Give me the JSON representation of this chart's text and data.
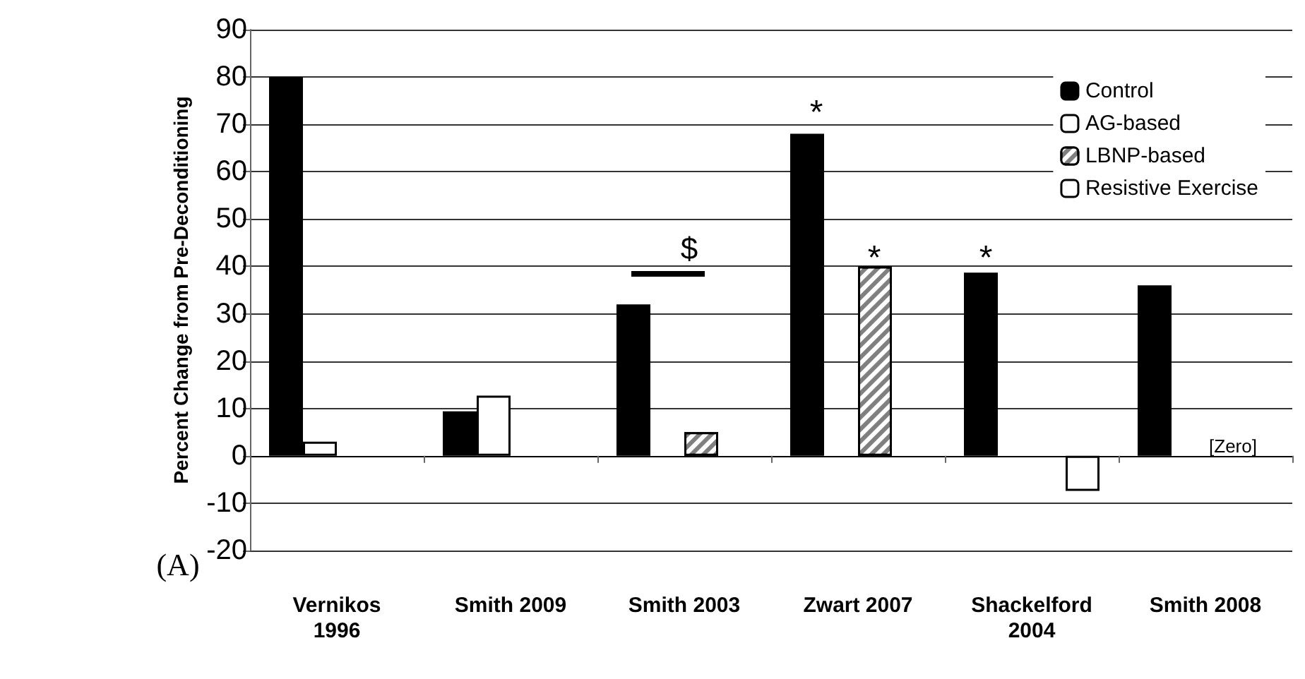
{
  "chart_data": {
    "type": "bar",
    "ylabel": "Percent Change from Pre-Deconditioning",
    "categories": [
      "Vernikos\n1996",
      "Smith 2009",
      "Smith 2003",
      "Zwart 2007",
      "Shackelford\n2004",
      "Smith 2008"
    ],
    "series": [
      {
        "name": "Control",
        "color": "#000000",
        "values": [
          80,
          9.4,
          32,
          68,
          38.7,
          36
        ]
      },
      {
        "name": "AG-based",
        "color": "#ffffff",
        "values": [
          3,
          12.7,
          null,
          null,
          null,
          null
        ]
      },
      {
        "name": "LBNP-based",
        "color": "#808080",
        "values": [
          null,
          null,
          5,
          40,
          null,
          null
        ]
      },
      {
        "name": "Resistive Exercise",
        "color": "#ffffff",
        "values": [
          null,
          null,
          null,
          null,
          -7.4,
          0
        ]
      }
    ],
    "ylim": [
      -20,
      90
    ],
    "yticks": [
      -20,
      -10,
      0,
      10,
      20,
      30,
      40,
      50,
      60,
      70,
      80,
      90
    ],
    "grid": "y",
    "legend": "top right",
    "annotations": [
      "*",
      "*",
      "*",
      "$",
      "[Zero]",
      "(A)"
    ]
  }
}
